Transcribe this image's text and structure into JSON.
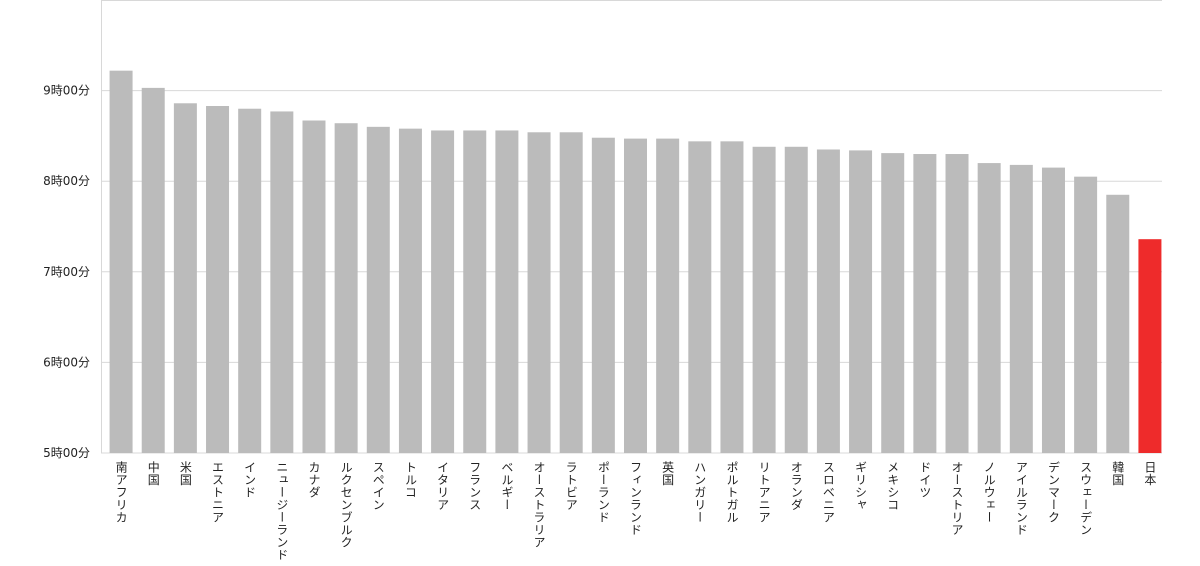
{
  "chart_data": {
    "type": "bar",
    "categories": [
      "南アフリカ",
      "中国",
      "米国",
      "エストニア",
      "インド",
      "ニュージーランド",
      "カナダ",
      "ルクセンブルク",
      "スペイン",
      "トルコ",
      "イタリア",
      "フランス",
      "ベルギー",
      "オーストラリア",
      "ラトビア",
      "ポーランド",
      "フィンランド",
      "英国",
      "ハンガリー",
      "ポルトガル",
      "リトアニア",
      "オランダ",
      "スロベニア",
      "ギリシャ",
      "メキシコ",
      "ドイツ",
      "オーストリア",
      "ノルウェー",
      "アイルランド",
      "デンマーク",
      "スウェーデン",
      "韓国",
      "日本"
    ],
    "values": [
      9.22,
      9.03,
      8.86,
      8.83,
      8.8,
      8.77,
      8.67,
      8.64,
      8.6,
      8.58,
      8.56,
      8.56,
      8.56,
      8.54,
      8.54,
      8.48,
      8.47,
      8.47,
      8.44,
      8.44,
      8.38,
      8.38,
      8.35,
      8.34,
      8.31,
      8.3,
      8.3,
      8.2,
      8.18,
      8.15,
      8.05,
      7.85,
      7.36
    ],
    "colors": [
      "#bbbbbb",
      "#bbbbbb",
      "#bbbbbb",
      "#bbbbbb",
      "#bbbbbb",
      "#bbbbbb",
      "#bbbbbb",
      "#bbbbbb",
      "#bbbbbb",
      "#bbbbbb",
      "#bbbbbb",
      "#bbbbbb",
      "#bbbbbb",
      "#bbbbbb",
      "#bbbbbb",
      "#bbbbbb",
      "#bbbbbb",
      "#bbbbbb",
      "#bbbbbb",
      "#bbbbbb",
      "#bbbbbb",
      "#bbbbbb",
      "#bbbbbb",
      "#bbbbbb",
      "#bbbbbb",
      "#bbbbbb",
      "#bbbbbb",
      "#bbbbbb",
      "#bbbbbb",
      "#bbbbbb",
      "#bbbbbb",
      "#bbbbbb",
      "#ee2b2b"
    ],
    "ylim": [
      5,
      10
    ],
    "yticks": [
      {
        "value": 5,
        "label": "5時00分"
      },
      {
        "value": 6,
        "label": "6時00分"
      },
      {
        "value": 7,
        "label": "7時00分"
      },
      {
        "value": 8,
        "label": "8時00分"
      },
      {
        "value": 9,
        "label": "9時00分"
      }
    ],
    "grid": true
  }
}
